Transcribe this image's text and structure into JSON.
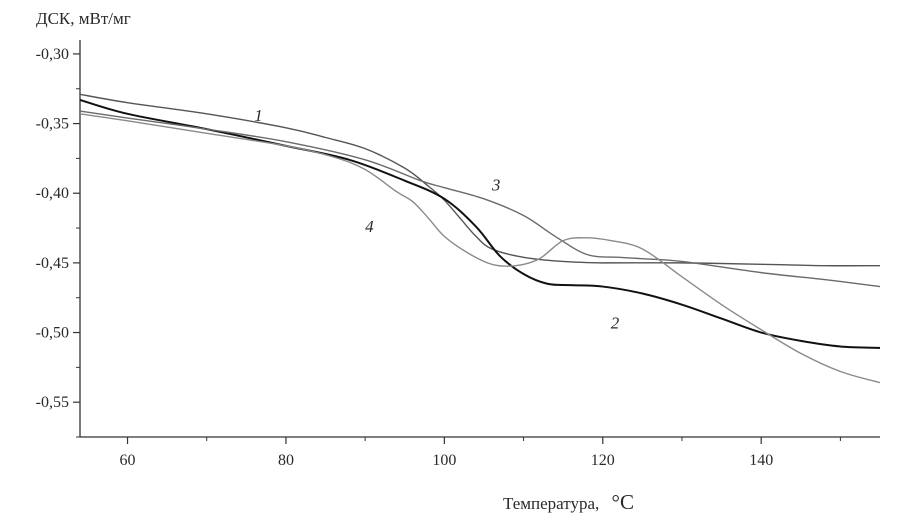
{
  "chart_data": {
    "type": "line",
    "ylabel": "ДСК, мВт/мг",
    "xlabel": "Температура,",
    "xlabel_unit": "°C",
    "xlim": [
      54,
      155
    ],
    "ylim": [
      -0.575,
      -0.29
    ],
    "x_ticks": [
      60,
      80,
      100,
      120,
      140
    ],
    "x_tick_labels": [
      "60",
      "80",
      "100",
      "120",
      "140"
    ],
    "y_ticks": [
      -0.3,
      -0.35,
      -0.4,
      -0.45,
      -0.5,
      -0.55
    ],
    "y_tick_labels": [
      "-0,30",
      "-0,35",
      "-0,40",
      "-0,45",
      "-0,50",
      "-0,55"
    ],
    "grid": false,
    "legend": "none",
    "series": [
      {
        "name": "1",
        "color": "#555555",
        "label_at": [
          76,
          -0.348
        ],
        "points": [
          [
            54,
            -0.329
          ],
          [
            60,
            -0.335
          ],
          [
            70,
            -0.343
          ],
          [
            80,
            -0.353
          ],
          [
            85,
            -0.36
          ],
          [
            90,
            -0.368
          ],
          [
            95,
            -0.382
          ],
          [
            98,
            -0.395
          ],
          [
            100,
            -0.405
          ],
          [
            102,
            -0.418
          ],
          [
            104,
            -0.431
          ],
          [
            106,
            -0.44
          ],
          [
            110,
            -0.446
          ],
          [
            115,
            -0.449
          ],
          [
            120,
            -0.45
          ],
          [
            130,
            -0.45
          ],
          [
            140,
            -0.451
          ],
          [
            148,
            -0.452
          ],
          [
            155,
            -0.452
          ]
        ]
      },
      {
        "name": "2",
        "color": "#111111",
        "label_at": [
          121,
          -0.497
        ],
        "points": [
          [
            54,
            -0.333
          ],
          [
            60,
            -0.343
          ],
          [
            70,
            -0.354
          ],
          [
            80,
            -0.366
          ],
          [
            88,
            -0.376
          ],
          [
            95,
            -0.391
          ],
          [
            100,
            -0.404
          ],
          [
            104,
            -0.424
          ],
          [
            107,
            -0.445
          ],
          [
            110,
            -0.458
          ],
          [
            113,
            -0.465
          ],
          [
            116,
            -0.466
          ],
          [
            120,
            -0.467
          ],
          [
            125,
            -0.472
          ],
          [
            130,
            -0.48
          ],
          [
            135,
            -0.49
          ],
          [
            140,
            -0.5
          ],
          [
            145,
            -0.506
          ],
          [
            150,
            -0.51
          ],
          [
            155,
            -0.511
          ]
        ]
      },
      {
        "name": "3",
        "color": "#6a6a6a",
        "label_at": [
          106,
          -0.398
        ],
        "points": [
          [
            54,
            -0.341
          ],
          [
            60,
            -0.346
          ],
          [
            70,
            -0.354
          ],
          [
            80,
            -0.363
          ],
          [
            90,
            -0.376
          ],
          [
            97,
            -0.391
          ],
          [
            100,
            -0.396
          ],
          [
            105,
            -0.404
          ],
          [
            110,
            -0.416
          ],
          [
            114,
            -0.431
          ],
          [
            118,
            -0.444
          ],
          [
            122,
            -0.446
          ],
          [
            125,
            -0.447
          ],
          [
            130,
            -0.449
          ],
          [
            140,
            -0.457
          ],
          [
            148,
            -0.462
          ],
          [
            155,
            -0.467
          ]
        ]
      },
      {
        "name": "4",
        "color": "#8a8a8a",
        "label_at": [
          90,
          -0.428
        ],
        "points": [
          [
            54,
            -0.343
          ],
          [
            60,
            -0.348
          ],
          [
            70,
            -0.357
          ],
          [
            80,
            -0.366
          ],
          [
            86,
            -0.374
          ],
          [
            90,
            -0.383
          ],
          [
            94,
            -0.399
          ],
          [
            96,
            -0.406
          ],
          [
            98,
            -0.418
          ],
          [
            100,
            -0.431
          ],
          [
            103,
            -0.443
          ],
          [
            106,
            -0.451
          ],
          [
            109,
            -0.452
          ],
          [
            112,
            -0.447
          ],
          [
            115,
            -0.434
          ],
          [
            118,
            -0.432
          ],
          [
            121,
            -0.434
          ],
          [
            125,
            -0.44
          ],
          [
            130,
            -0.46
          ],
          [
            135,
            -0.48
          ],
          [
            140,
            -0.498
          ],
          [
            145,
            -0.515
          ],
          [
            150,
            -0.528
          ],
          [
            155,
            -0.536
          ]
        ]
      }
    ]
  }
}
